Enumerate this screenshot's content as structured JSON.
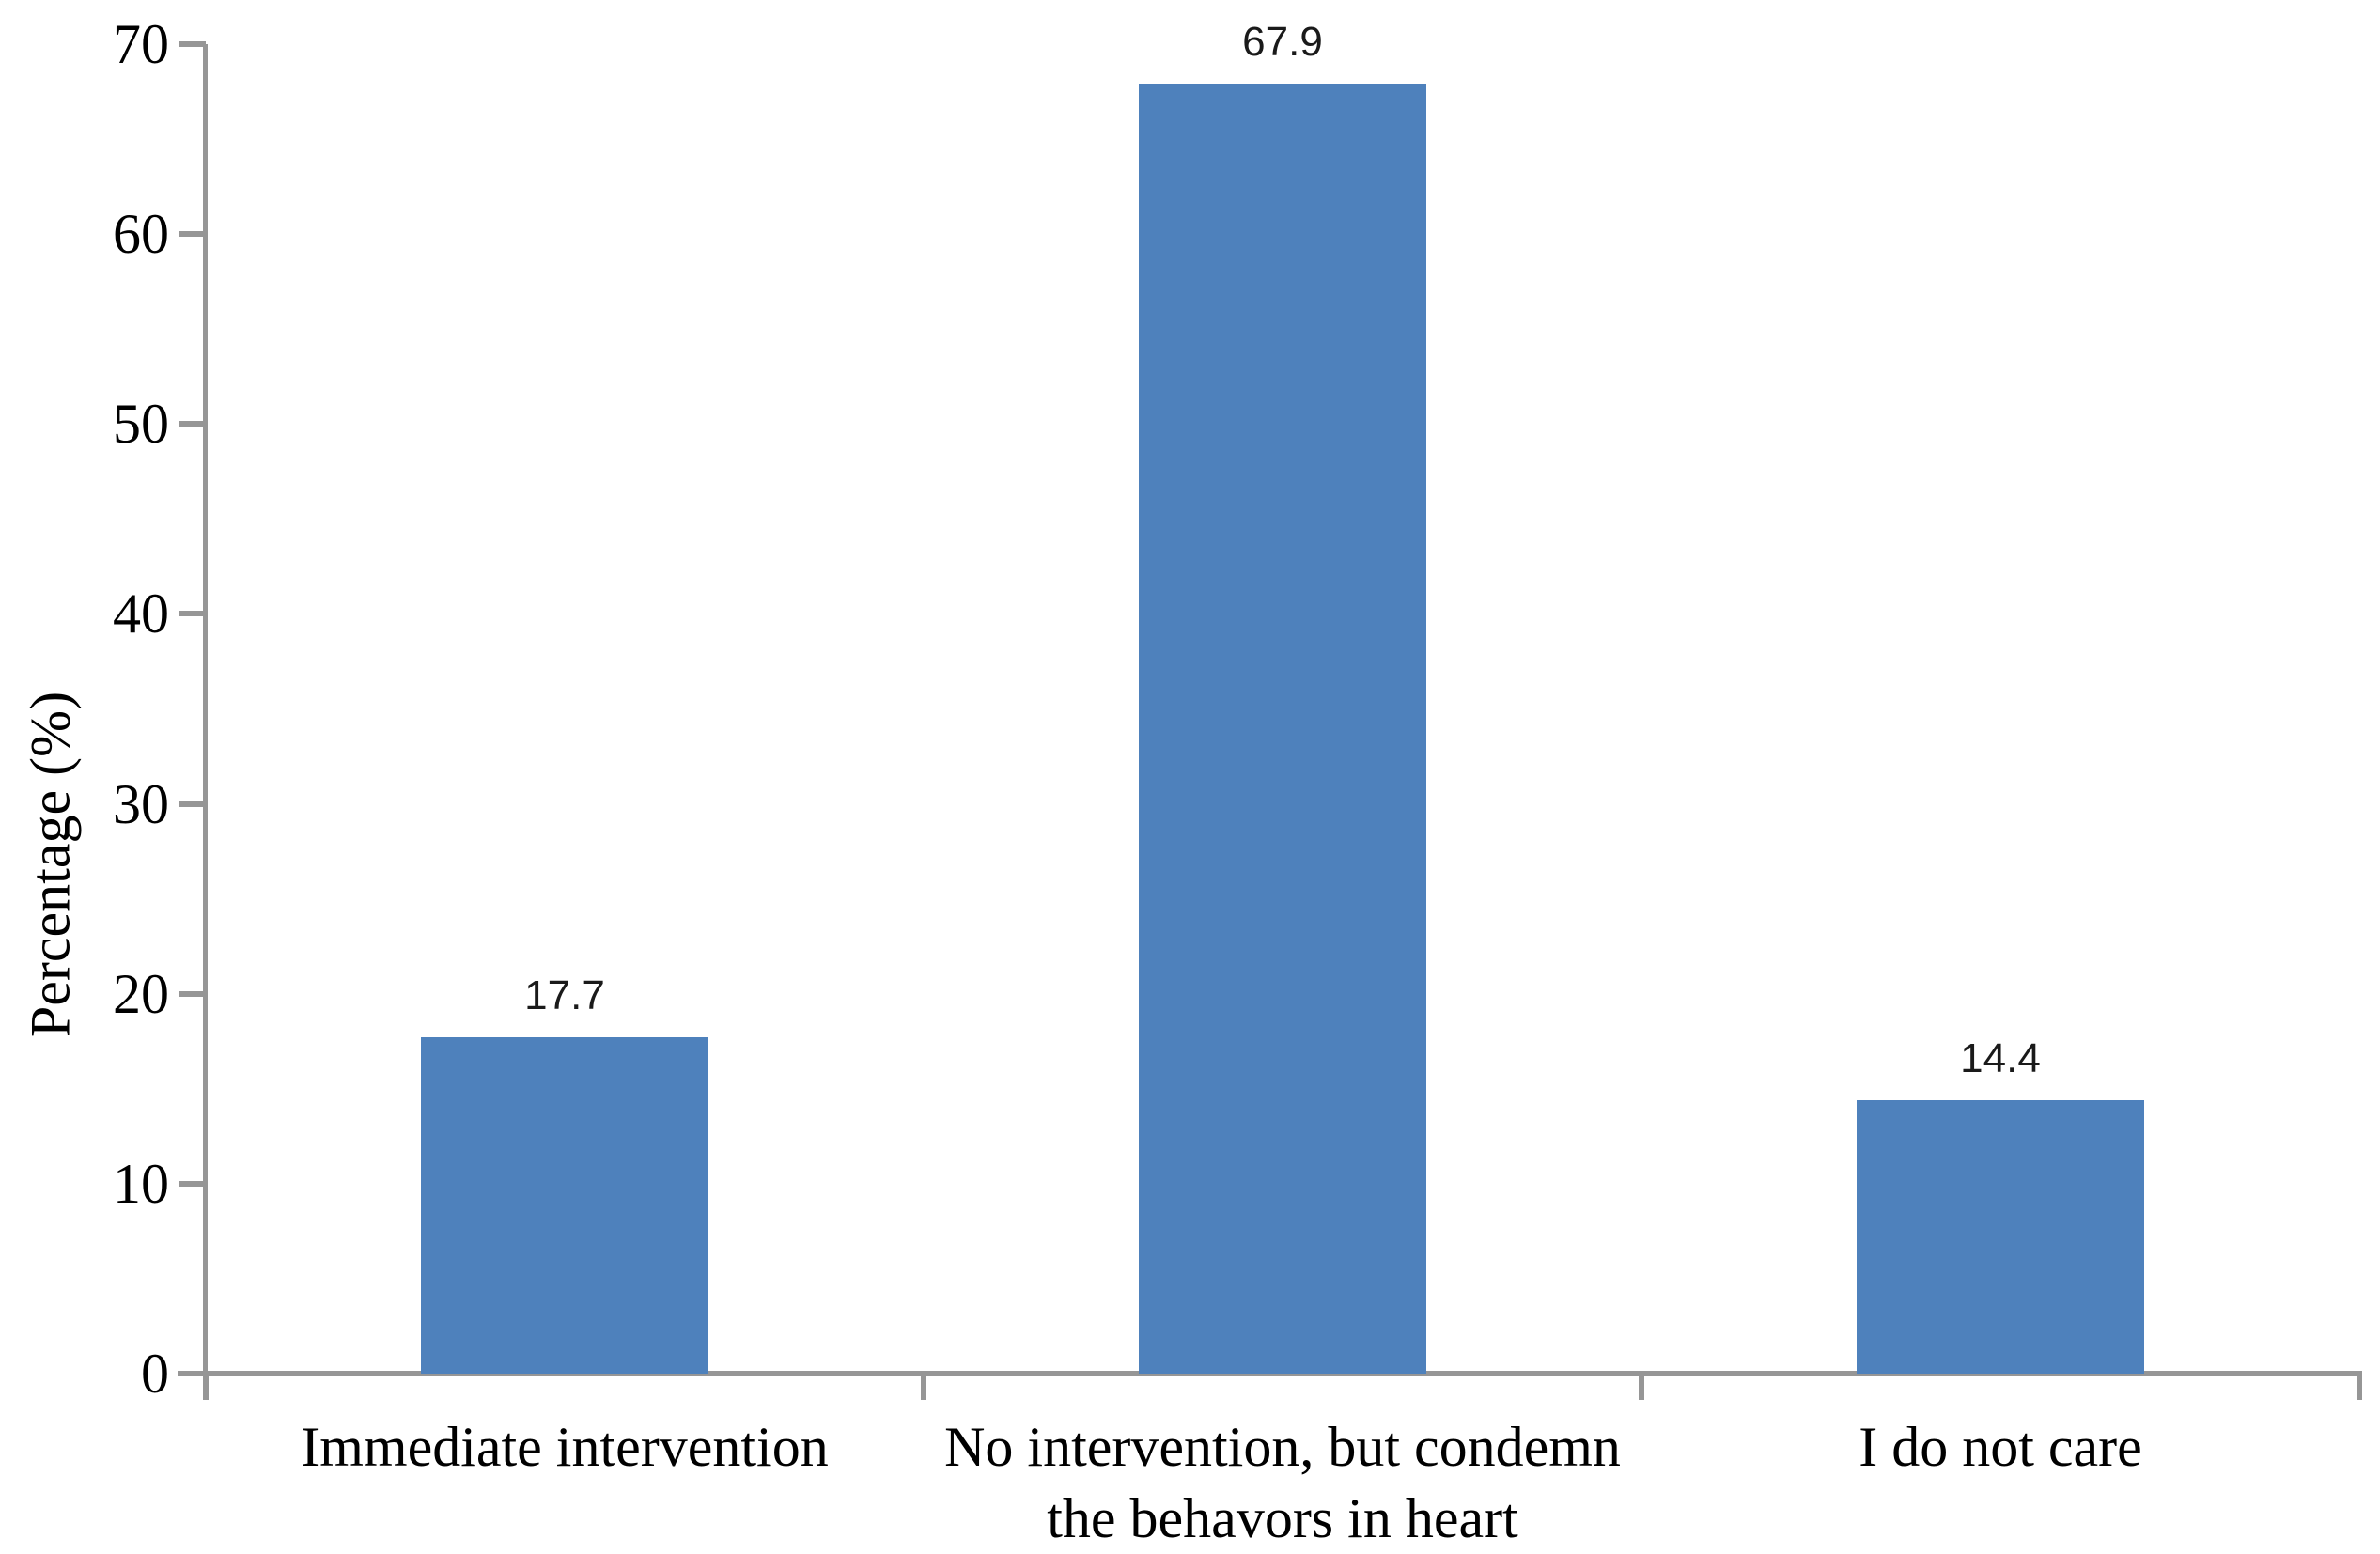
{
  "chart_data": {
    "type": "bar",
    "title": "",
    "xlabel": "",
    "ylabel": "Percentage (%)",
    "categories": [
      "Immediate intervention",
      "No intervention, but condemn the behavors in heart",
      "I do not care"
    ],
    "values": [
      17.7,
      67.9,
      14.4
    ],
    "data_labels": [
      "17.7",
      "67.9",
      "14.4"
    ],
    "ylim": [
      0,
      70
    ],
    "yticks": [
      0,
      10,
      20,
      30,
      40,
      50,
      60,
      70
    ],
    "grid": false,
    "legend": false,
    "bar_color": "#4E81BC",
    "axis_color": "#969696",
    "text_color": "#000000",
    "data_label_color": "#1a1a1a"
  }
}
